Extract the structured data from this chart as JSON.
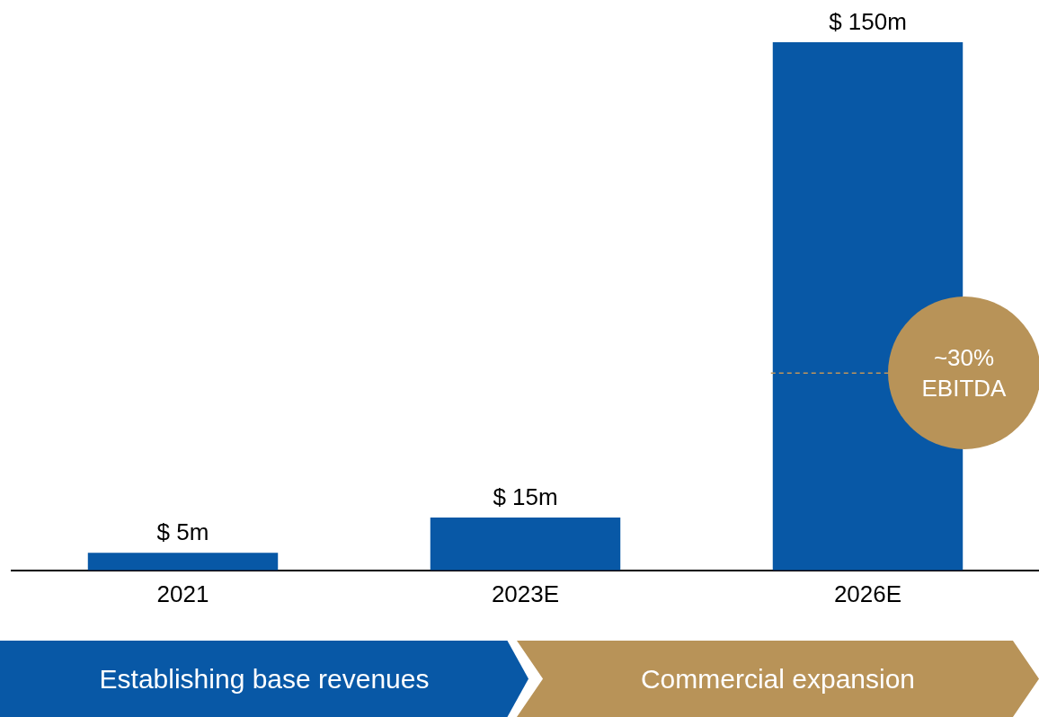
{
  "chart_data": {
    "type": "bar",
    "categories": [
      "2021",
      "2023E",
      "2026E"
    ],
    "values": [
      5,
      15,
      150
    ],
    "color": "#0858a6",
    "value_labels": [
      "$ 5m",
      "$ 15m",
      "$ 150m"
    ],
    "ref_lines": [
      {
        "axis": "y",
        "value": 56,
        "color": "#c0955a",
        "line_style": "dashed"
      }
    ],
    "annotations": [
      "~30% EBITDA",
      "Establishing base revenues",
      "Commercial expansion"
    ],
    "grid": false,
    "legend": false
  }
}
